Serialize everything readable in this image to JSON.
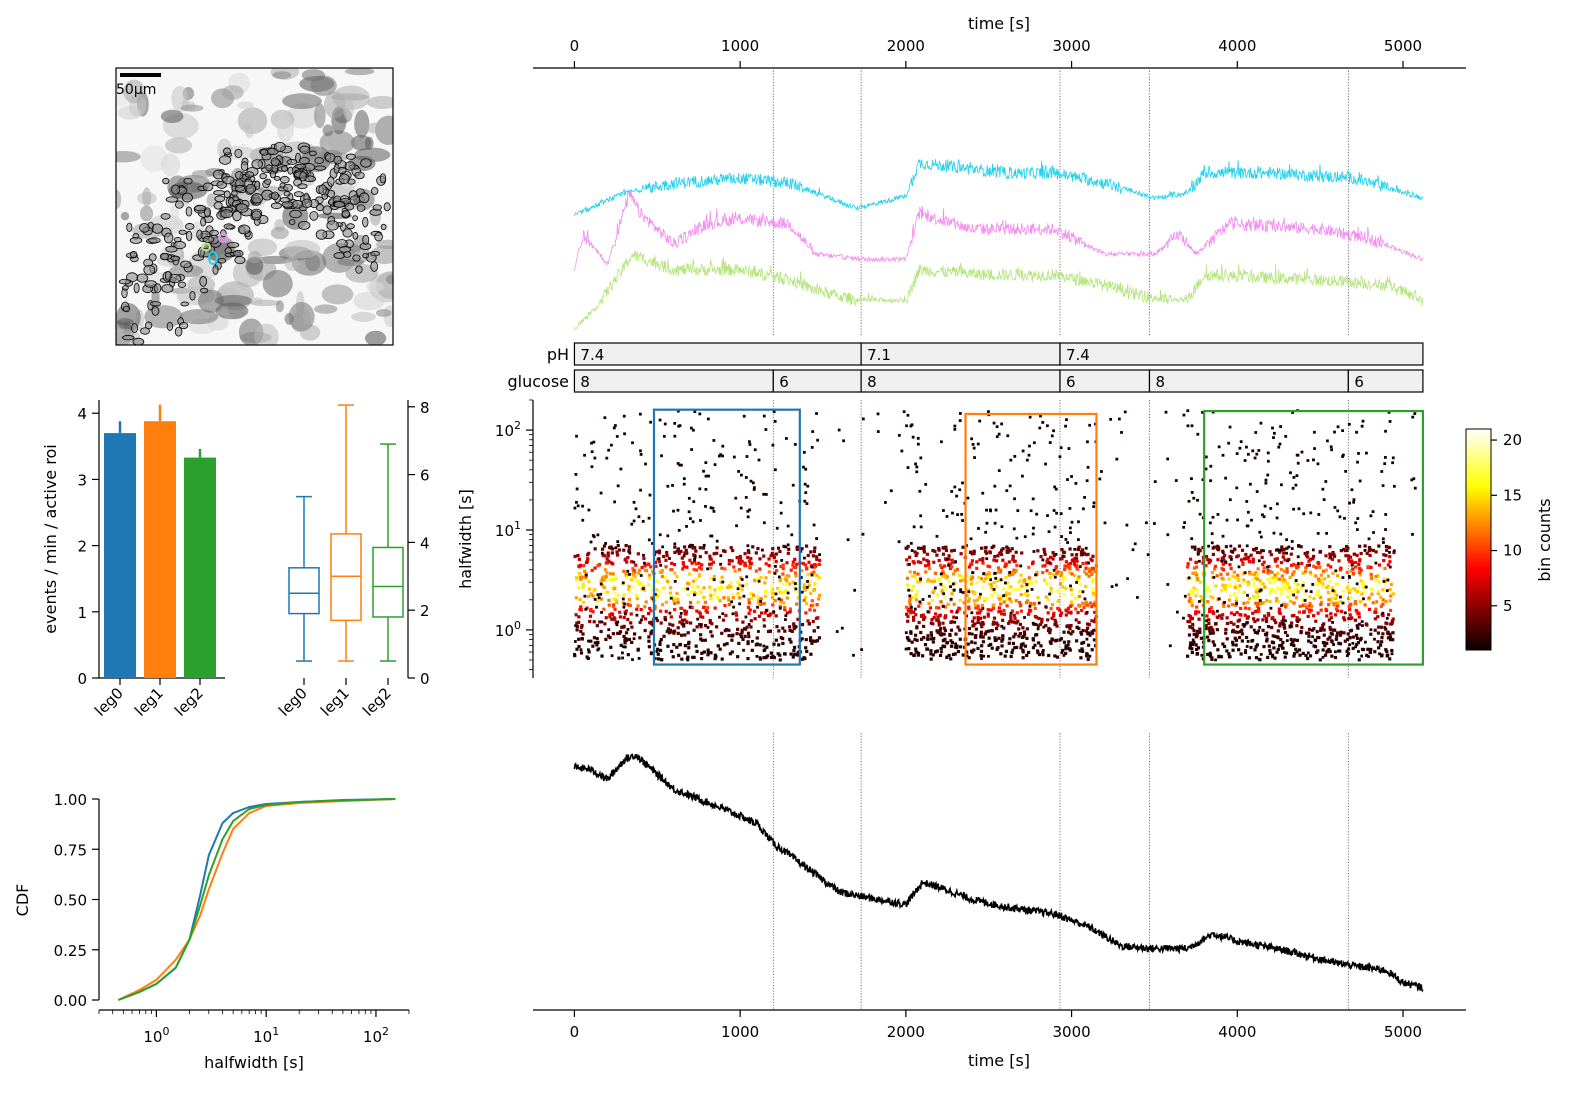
{
  "colors": {
    "leg0": "#1f77b4",
    "leg1": "#ff7f0e",
    "leg2": "#2ca02c",
    "trace_cyan": "#1fd1ee",
    "trace_pink": "#f38cf0",
    "trace_green": "#b5e57e",
    "condition_bar_fill": "#f0f0f0"
  },
  "micrograph": {
    "scale_bar_label": "50μm"
  },
  "chart_data": [
    {
      "id": "traces",
      "type": "line",
      "x_axis": {
        "label": "time [s]",
        "position": "top",
        "ticks": [
          0,
          1000,
          2000,
          3000,
          4000,
          5000
        ],
        "lim": [
          -250,
          5380
        ]
      },
      "series": [
        {
          "color": "trace_cyan",
          "offset": 1.0,
          "keypoints": [
            [
              0,
              0.03
            ],
            [
              300,
              0.25
            ],
            [
              600,
              0.35
            ],
            [
              1000,
              0.4
            ],
            [
              1300,
              0.35
            ],
            [
              1700,
              0.1
            ],
            [
              2000,
              0.22
            ],
            [
              2080,
              0.55
            ],
            [
              2600,
              0.45
            ],
            [
              2900,
              0.45
            ],
            [
              3200,
              0.35
            ],
            [
              3500,
              0.2
            ],
            [
              3700,
              0.25
            ],
            [
              3800,
              0.45
            ],
            [
              4200,
              0.45
            ],
            [
              4700,
              0.4
            ],
            [
              5120,
              0.2
            ]
          ]
        },
        {
          "color": "trace_pink",
          "offset": 0.5,
          "keypoints": [
            [
              0,
              0.05
            ],
            [
              50,
              0.4
            ],
            [
              200,
              0.1
            ],
            [
              330,
              0.8
            ],
            [
              400,
              0.6
            ],
            [
              600,
              0.3
            ],
            [
              800,
              0.5
            ],
            [
              1000,
              0.55
            ],
            [
              1300,
              0.5
            ],
            [
              1450,
              0.2
            ],
            [
              1750,
              0.15
            ],
            [
              2000,
              0.15
            ],
            [
              2080,
              0.6
            ],
            [
              2400,
              0.45
            ],
            [
              2900,
              0.45
            ],
            [
              3200,
              0.2
            ],
            [
              3500,
              0.2
            ],
            [
              3650,
              0.4
            ],
            [
              3750,
              0.2
            ],
            [
              3950,
              0.5
            ],
            [
              4500,
              0.45
            ],
            [
              4800,
              0.35
            ],
            [
              5120,
              0.15
            ]
          ]
        },
        {
          "color": "trace_green",
          "offset": 0.0,
          "keypoints": [
            [
              0,
              0.02
            ],
            [
              120,
              0.2
            ],
            [
              350,
              0.75
            ],
            [
              600,
              0.6
            ],
            [
              1000,
              0.6
            ],
            [
              1300,
              0.5
            ],
            [
              1450,
              0.4
            ],
            [
              1700,
              0.3
            ],
            [
              2000,
              0.3
            ],
            [
              2080,
              0.6
            ],
            [
              2500,
              0.55
            ],
            [
              2900,
              0.55
            ],
            [
              3200,
              0.45
            ],
            [
              3400,
              0.35
            ],
            [
              3600,
              0.3
            ],
            [
              3700,
              0.3
            ],
            [
              3800,
              0.55
            ],
            [
              4500,
              0.5
            ],
            [
              4900,
              0.45
            ],
            [
              5120,
              0.3
            ]
          ]
        }
      ],
      "vlines": [
        1200,
        1730,
        2930,
        3470,
        4670
      ]
    },
    {
      "id": "conditions",
      "type": "table",
      "rows": [
        {
          "label": "pH",
          "segments": [
            {
              "start": 0,
              "end": 1730,
              "label": "7.4"
            },
            {
              "start": 1730,
              "end": 2930,
              "label": "7.1"
            },
            {
              "start": 2930,
              "end": 5120,
              "label": "7.4"
            }
          ]
        },
        {
          "label": "glucose",
          "segments": [
            {
              "start": 0,
              "end": 1200,
              "label": "8"
            },
            {
              "start": 1200,
              "end": 1730,
              "label": "6"
            },
            {
              "start": 1730,
              "end": 2930,
              "label": "8"
            },
            {
              "start": 2930,
              "end": 3470,
              "label": "6"
            },
            {
              "start": 3470,
              "end": 4670,
              "label": "8"
            },
            {
              "start": 4670,
              "end": 5120,
              "label": "6"
            }
          ]
        }
      ]
    },
    {
      "id": "halfwidth_hexbin",
      "type": "heatmap",
      "ylabel": "halfwidth [s]",
      "yscale": "log",
      "ylim": [
        0.33,
        200
      ],
      "yticks": [
        {
          "value": 1,
          "label": "10^0"
        },
        {
          "value": 10,
          "label": "10^1"
        },
        {
          "value": 100,
          "label": "10^2"
        }
      ],
      "xlim": [
        -250,
        5380
      ],
      "active_time_ranges": [
        [
          0,
          1480
        ],
        [
          2000,
          3150
        ],
        [
          3700,
          4950
        ]
      ],
      "colorbar": {
        "label": "bin counts",
        "ticks": [
          5,
          10,
          15,
          20
        ],
        "range": [
          1,
          21
        ],
        "colormap": "hot"
      },
      "selection_boxes": [
        {
          "leg": "leg0",
          "x": [
            480,
            1360
          ],
          "y": [
            0.45,
            160
          ]
        },
        {
          "leg": "leg1",
          "x": [
            2360,
            3150
          ],
          "y": [
            0.45,
            145
          ]
        },
        {
          "leg": "leg2",
          "x": [
            3800,
            5120
          ],
          "y": [
            0.45,
            155
          ]
        }
      ],
      "vlines": [
        1200,
        1730,
        2930,
        3470,
        4670
      ]
    },
    {
      "id": "events_rate",
      "type": "bar",
      "ylabel": "events / min / active roi",
      "categories": [
        "leg0",
        "leg1",
        "leg2"
      ],
      "values": [
        3.7,
        3.88,
        3.33
      ],
      "errors": [
        0.18,
        0.25,
        0.13
      ],
      "ylim": [
        0,
        4.2
      ],
      "yticks": [
        0,
        1,
        2,
        3,
        4
      ]
    },
    {
      "id": "halfwidth_box",
      "type": "box",
      "categories": [
        "leg0",
        "leg1",
        "leg2"
      ],
      "ylim": [
        0,
        8.2
      ],
      "yticks": [
        0,
        2,
        4,
        6,
        8
      ],
      "yaxis_position": "right",
      "boxes": [
        {
          "whislo": 0.5,
          "q1": 1.9,
          "median": 2.5,
          "q3": 3.25,
          "whishi": 5.35
        },
        {
          "whislo": 0.5,
          "q1": 1.7,
          "median": 3.0,
          "q3": 4.25,
          "whishi": 8.05
        },
        {
          "whislo": 0.5,
          "q1": 1.8,
          "median": 2.7,
          "q3": 3.85,
          "whishi": 6.9
        }
      ]
    },
    {
      "id": "halfwidth_cdf",
      "type": "line",
      "xlabel": "halfwidth [s]",
      "ylabel": "CDF",
      "xscale": "log",
      "xlim": [
        0.3,
        200
      ],
      "xticks": [
        {
          "value": 1,
          "label": "10^0"
        },
        {
          "value": 10,
          "label": "10^1"
        },
        {
          "value": 100,
          "label": "10^2"
        }
      ],
      "ylim": [
        0,
        1
      ],
      "yticks": [
        "0.00",
        "0.25",
        "0.50",
        "0.75",
        "1.00"
      ],
      "series": [
        {
          "leg": "leg0",
          "points": [
            [
              0.45,
              0.0
            ],
            [
              0.7,
              0.04
            ],
            [
              1.0,
              0.08
            ],
            [
              1.5,
              0.16
            ],
            [
              2.0,
              0.3
            ],
            [
              2.5,
              0.52
            ],
            [
              3.0,
              0.72
            ],
            [
              4.0,
              0.88
            ],
            [
              5.0,
              0.93
            ],
            [
              7.0,
              0.96
            ],
            [
              10,
              0.975
            ],
            [
              20,
              0.985
            ],
            [
              50,
              0.995
            ],
            [
              150,
              1.0
            ]
          ]
        },
        {
          "leg": "leg1",
          "points": [
            [
              0.45,
              0.0
            ],
            [
              0.7,
              0.05
            ],
            [
              1.0,
              0.1
            ],
            [
              1.5,
              0.2
            ],
            [
              2.0,
              0.3
            ],
            [
              2.5,
              0.42
            ],
            [
              3.0,
              0.55
            ],
            [
              4.0,
              0.73
            ],
            [
              5.0,
              0.85
            ],
            [
              7.0,
              0.93
            ],
            [
              10,
              0.965
            ],
            [
              20,
              0.98
            ],
            [
              50,
              0.99
            ],
            [
              150,
              1.0
            ]
          ]
        },
        {
          "leg": "leg2",
          "points": [
            [
              0.45,
              0.0
            ],
            [
              0.7,
              0.04
            ],
            [
              1.0,
              0.08
            ],
            [
              1.5,
              0.16
            ],
            [
              2.0,
              0.3
            ],
            [
              2.5,
              0.47
            ],
            [
              3.0,
              0.62
            ],
            [
              4.0,
              0.8
            ],
            [
              5.0,
              0.89
            ],
            [
              7.0,
              0.95
            ],
            [
              10,
              0.97
            ],
            [
              20,
              0.985
            ],
            [
              50,
              0.993
            ],
            [
              150,
              1.0
            ]
          ]
        }
      ]
    },
    {
      "id": "slow_trace",
      "type": "line",
      "xlabel": "time [s]",
      "xticks": [
        0,
        1000,
        2000,
        3000,
        4000,
        5000
      ],
      "xlim": [
        -250,
        5380
      ],
      "series": [
        {
          "color": "#000000",
          "keypoints": [
            [
              0,
              0.93
            ],
            [
              100,
              0.92
            ],
            [
              200,
              0.88
            ],
            [
              300,
              0.96
            ],
            [
              370,
              0.98
            ],
            [
              600,
              0.84
            ],
            [
              900,
              0.76
            ],
            [
              1100,
              0.7
            ],
            [
              1200,
              0.62
            ],
            [
              1400,
              0.52
            ],
            [
              1600,
              0.42
            ],
            [
              1750,
              0.4
            ],
            [
              2000,
              0.37
            ],
            [
              2100,
              0.46
            ],
            [
              2200,
              0.44
            ],
            [
              2400,
              0.39
            ],
            [
              2600,
              0.36
            ],
            [
              2900,
              0.33
            ],
            [
              3100,
              0.28
            ],
            [
              3300,
              0.2
            ],
            [
              3470,
              0.19
            ],
            [
              3700,
              0.19
            ],
            [
              3850,
              0.25
            ],
            [
              4000,
              0.22
            ],
            [
              4300,
              0.18
            ],
            [
              4600,
              0.13
            ],
            [
              4900,
              0.1
            ],
            [
              5000,
              0.05
            ],
            [
              5120,
              0.03
            ]
          ]
        }
      ],
      "vlines": [
        1200,
        1730,
        2930,
        3470,
        4670
      ]
    }
  ]
}
